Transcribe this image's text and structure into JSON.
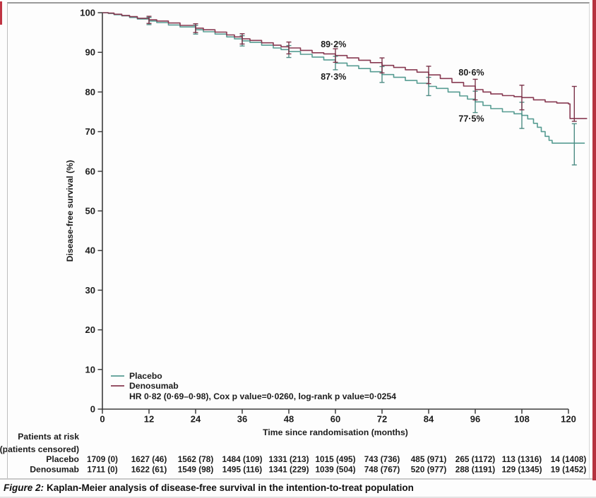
{
  "figure": {
    "caption_label": "Figure 2:",
    "caption_text": "Kaplan-Meier analysis of disease-free survival in the intention-to-treat population"
  },
  "artifact_colors": {
    "red_edge": "#b5323f"
  },
  "chart_data": {
    "type": "line",
    "subtype": "kaplan-meier-step",
    "title": "",
    "xlabel": "Time since randomisation (months)",
    "ylabel": "Disease-free survival (%)",
    "xlim": [
      0,
      120
    ],
    "ylim": [
      0,
      100
    ],
    "xticks": [
      0,
      12,
      24,
      36,
      48,
      60,
      72,
      84,
      96,
      108,
      120
    ],
    "yticks": [
      0,
      10,
      20,
      30,
      40,
      50,
      60,
      70,
      80,
      90,
      100
    ],
    "grid": false,
    "axis_color": "#3d3d3d",
    "legend_position": "lower-left",
    "legend": {
      "stats": "HR 0·82 (0·69–0·98), Cox p value=0·0260, log-rank p value=0·0254"
    },
    "series": [
      {
        "name": "Placebo",
        "color": "#569c92",
        "error_color": "#4d8c84",
        "points": [
          [
            0,
            100
          ],
          [
            1.5,
            99.8
          ],
          [
            3,
            99.5
          ],
          [
            5,
            99.2
          ],
          [
            7,
            98.8
          ],
          [
            9,
            98.4
          ],
          [
            12,
            97.9
          ],
          [
            14,
            97.5
          ],
          [
            17,
            96.9
          ],
          [
            20,
            96.4
          ],
          [
            24,
            95.7
          ],
          [
            26,
            95.2
          ],
          [
            29,
            94.6
          ],
          [
            32,
            93.9
          ],
          [
            34,
            93.4
          ],
          [
            36,
            92.9
          ],
          [
            38,
            92.5
          ],
          [
            41,
            91.8
          ],
          [
            44,
            91.1
          ],
          [
            46,
            90.7
          ],
          [
            48,
            90.2
          ],
          [
            51,
            89.5
          ],
          [
            54,
            88.8
          ],
          [
            57,
            88.1
          ],
          [
            60,
            87.3
          ],
          [
            63,
            86.6
          ],
          [
            66,
            85.9
          ],
          [
            69,
            85.1
          ],
          [
            72,
            84.4
          ],
          [
            75,
            83.7
          ],
          [
            78,
            82.9
          ],
          [
            81,
            82.2
          ],
          [
            84,
            81.4
          ],
          [
            86,
            80.9
          ],
          [
            89,
            80.0
          ],
          [
            92,
            79.0
          ],
          [
            94,
            78.2
          ],
          [
            96,
            77.5
          ],
          [
            98,
            76.6
          ],
          [
            100,
            75.8
          ],
          [
            103,
            75.0
          ],
          [
            106,
            74.5
          ],
          [
            108,
            74.1
          ],
          [
            109.5,
            73.2
          ],
          [
            111,
            72.1
          ],
          [
            112,
            71.1
          ],
          [
            113,
            70.0
          ],
          [
            114,
            68.8
          ],
          [
            115,
            67.8
          ],
          [
            115.8,
            67.1
          ],
          [
            124.2,
            67.1
          ]
        ],
        "error_bars": [
          {
            "x": 12,
            "y": 97.9,
            "half": 0.9
          },
          {
            "x": 24,
            "y": 95.7,
            "half": 1.1
          },
          {
            "x": 36,
            "y": 92.9,
            "half": 1.3
          },
          {
            "x": 48,
            "y": 90.2,
            "half": 1.5
          },
          {
            "x": 60,
            "y": 87.3,
            "half": 1.7
          },
          {
            "x": 72,
            "y": 84.4,
            "half": 2.0
          },
          {
            "x": 84,
            "y": 81.4,
            "half": 2.3
          },
          {
            "x": 96,
            "y": 77.5,
            "half": 2.7
          },
          {
            "x": 108,
            "y": 74.1,
            "half": 3.3
          },
          {
            "x": 121.5,
            "y": 66.8,
            "half": 5.2
          }
        ]
      },
      {
        "name": "Denosumab",
        "color": "#873951",
        "error_color": "#7b3349",
        "points": [
          [
            0,
            100
          ],
          [
            1.5,
            99.9
          ],
          [
            3,
            99.6
          ],
          [
            5,
            99.3
          ],
          [
            7,
            99.0
          ],
          [
            9,
            98.6
          ],
          [
            12,
            98.2
          ],
          [
            14,
            97.9
          ],
          [
            17,
            97.4
          ],
          [
            20,
            96.8
          ],
          [
            24,
            96.1
          ],
          [
            26,
            95.7
          ],
          [
            29,
            95.1
          ],
          [
            32,
            94.4
          ],
          [
            34,
            93.9
          ],
          [
            36,
            93.4
          ],
          [
            38,
            93.0
          ],
          [
            41,
            92.4
          ],
          [
            44,
            91.8
          ],
          [
            46,
            91.4
          ],
          [
            48,
            91.1
          ],
          [
            51,
            90.5
          ],
          [
            54,
            89.9
          ],
          [
            57,
            89.6
          ],
          [
            60,
            89.2
          ],
          [
            63,
            88.6
          ],
          [
            66,
            88.0
          ],
          [
            69,
            87.4
          ],
          [
            72,
            86.7
          ],
          [
            75,
            86.2
          ],
          [
            78,
            85.6
          ],
          [
            81,
            85.0
          ],
          [
            84,
            84.3
          ],
          [
            87,
            83.4
          ],
          [
            90,
            82.4
          ],
          [
            93,
            81.5
          ],
          [
            96,
            80.6
          ],
          [
            98,
            80.0
          ],
          [
            100,
            79.5
          ],
          [
            103,
            79.1
          ],
          [
            106,
            78.8
          ],
          [
            108,
            78.6
          ],
          [
            111,
            78.0
          ],
          [
            114,
            77.5
          ],
          [
            117,
            77.2
          ],
          [
            120,
            77.0
          ],
          [
            120.4,
            73.3
          ],
          [
            124.8,
            73.3
          ]
        ],
        "error_bars": [
          {
            "x": 12,
            "y": 98.2,
            "half": 0.9
          },
          {
            "x": 24,
            "y": 96.1,
            "half": 1.1
          },
          {
            "x": 36,
            "y": 93.4,
            "half": 1.3
          },
          {
            "x": 48,
            "y": 91.1,
            "half": 1.5
          },
          {
            "x": 60,
            "y": 89.2,
            "half": 1.7
          },
          {
            "x": 72,
            "y": 86.7,
            "half": 1.9
          },
          {
            "x": 84,
            "y": 84.3,
            "half": 2.2
          },
          {
            "x": 96,
            "y": 80.6,
            "half": 2.6
          },
          {
            "x": 108,
            "y": 78.6,
            "half": 3.1
          },
          {
            "x": 121.5,
            "y": 77.0,
            "half": 4.4
          }
        ]
      }
    ],
    "annotations": [
      {
        "text": "89·2%",
        "x": 59.5,
        "y": 91.3
      },
      {
        "text": "87·3%",
        "x": 59.5,
        "y": 83.1
      },
      {
        "text": "80·6%",
        "x": 95,
        "y": 84.2
      },
      {
        "text": "77·5%",
        "x": 95,
        "y": 72.5
      }
    ],
    "at_risk": {
      "header_line1": "Patients at risk",
      "header_line2": "(patients censored)",
      "rows": [
        {
          "label": "Placebo",
          "values": [
            "1709 (0)",
            "1627 (46)",
            "1562 (78)",
            "1484 (109)",
            "1331 (213)",
            "1015 (495)",
            "743 (736)",
            "485 (971)",
            "265 (1172)",
            "113 (1316)",
            "14 (1408)"
          ]
        },
        {
          "label": "Denosumab",
          "values": [
            "1711 (0)",
            "1622 (61)",
            "1549 (98)",
            "1495 (116)",
            "1341 (229)",
            "1039 (504)",
            "748 (767)",
            "520 (977)",
            "288 (1191)",
            "129 (1345)",
            "19 (1452)"
          ]
        }
      ]
    }
  }
}
